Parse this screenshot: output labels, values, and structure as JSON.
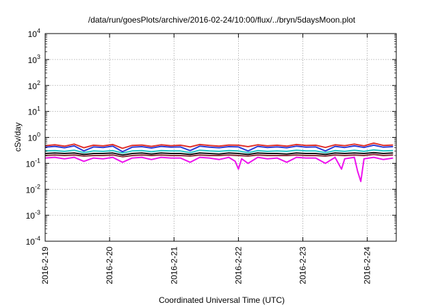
{
  "chart_data": {
    "type": "line",
    "title": "/data/run/goesPlots/archive/2016-02-24/10:00/flux/../bryn/5daysMoon.plot",
    "xlabel": "Coordinated Universal Time (UTC)",
    "ylabel": "cSv/day",
    "yscale": "log",
    "ylim": [
      0.0001,
      10000
    ],
    "xlim": [
      0,
      5.45
    ],
    "x_unit": "days since 2016-2-19 00:00 UTC",
    "grid": true,
    "x_ticks": [
      {
        "value": 0,
        "label": "2016-2-19"
      },
      {
        "value": 1,
        "label": "2016-2-20"
      },
      {
        "value": 2,
        "label": "2016-2-21"
      },
      {
        "value": 3,
        "label": "2016-2-22"
      },
      {
        "value": 4,
        "label": "2016-2-23"
      },
      {
        "value": 5,
        "label": "2016-2-24"
      }
    ],
    "y_ticks": [
      {
        "value": 0.0001,
        "base": "10",
        "exp": "-4"
      },
      {
        "value": 0.001,
        "base": "10",
        "exp": "-3"
      },
      {
        "value": 0.01,
        "base": "10",
        "exp": "-2"
      },
      {
        "value": 0.1,
        "base": "10",
        "exp": "-1"
      },
      {
        "value": 1,
        "base": "10",
        "exp": "0"
      },
      {
        "value": 10,
        "base": "10",
        "exp": "1"
      },
      {
        "value": 100,
        "base": "10",
        "exp": "2"
      },
      {
        "value": 1000,
        "base": "10",
        "exp": "3"
      },
      {
        "value": 10000,
        "base": "10",
        "exp": "4"
      }
    ],
    "series": [
      {
        "color": "#e0302a",
        "x": [
          0,
          0.15,
          0.3,
          0.45,
          0.6,
          0.75,
          0.9,
          1.05,
          1.2,
          1.35,
          1.5,
          1.65,
          1.8,
          1.95,
          2.1,
          2.25,
          2.4,
          2.55,
          2.7,
          2.85,
          3.0,
          3.15,
          3.3,
          3.45,
          3.6,
          3.75,
          3.9,
          4.05,
          4.2,
          4.35,
          4.5,
          4.65,
          4.8,
          4.95,
          5.1,
          5.25,
          5.4
        ],
        "y": [
          0.48,
          0.52,
          0.46,
          0.55,
          0.4,
          0.5,
          0.47,
          0.53,
          0.38,
          0.49,
          0.51,
          0.45,
          0.52,
          0.48,
          0.5,
          0.43,
          0.53,
          0.49,
          0.46,
          0.51,
          0.5,
          0.44,
          0.52,
          0.47,
          0.5,
          0.46,
          0.53,
          0.49,
          0.5,
          0.41,
          0.52,
          0.48,
          0.55,
          0.47,
          0.6,
          0.49,
          0.51
        ]
      },
      {
        "color": "#2a3bd6",
        "x": [
          0,
          0.15,
          0.3,
          0.45,
          0.6,
          0.75,
          0.9,
          1.05,
          1.2,
          1.35,
          1.5,
          1.65,
          1.8,
          1.95,
          2.1,
          2.25,
          2.4,
          2.55,
          2.7,
          2.85,
          3.0,
          3.15,
          3.3,
          3.45,
          3.6,
          3.75,
          3.9,
          4.05,
          4.2,
          4.35,
          4.5,
          4.65,
          4.8,
          4.95,
          5.1,
          5.25,
          5.4
        ],
        "y": [
          0.42,
          0.45,
          0.4,
          0.47,
          0.3,
          0.43,
          0.41,
          0.46,
          0.28,
          0.42,
          0.44,
          0.39,
          0.45,
          0.42,
          0.43,
          0.31,
          0.46,
          0.42,
          0.4,
          0.44,
          0.43,
          0.3,
          0.45,
          0.41,
          0.43,
          0.4,
          0.46,
          0.42,
          0.43,
          0.3,
          0.45,
          0.41,
          0.47,
          0.41,
          0.5,
          0.42,
          0.44
        ]
      },
      {
        "color": "#22c4c4",
        "x": [
          0,
          0.15,
          0.3,
          0.45,
          0.6,
          0.75,
          0.9,
          1.05,
          1.2,
          1.35,
          1.5,
          1.65,
          1.8,
          1.95,
          2.1,
          2.25,
          2.4,
          2.55,
          2.7,
          2.85,
          3.0,
          3.15,
          3.3,
          3.45,
          3.6,
          3.75,
          3.9,
          4.05,
          4.2,
          4.35,
          4.5,
          4.65,
          4.8,
          4.95,
          5.1,
          5.25,
          5.4
        ],
        "y": [
          0.3,
          0.31,
          0.29,
          0.32,
          0.26,
          0.3,
          0.29,
          0.31,
          0.25,
          0.3,
          0.31,
          0.28,
          0.31,
          0.3,
          0.3,
          0.26,
          0.32,
          0.3,
          0.29,
          0.31,
          0.3,
          0.26,
          0.31,
          0.29,
          0.3,
          0.29,
          0.32,
          0.3,
          0.3,
          0.26,
          0.31,
          0.29,
          0.32,
          0.29,
          0.33,
          0.3,
          0.31
        ]
      },
      {
        "color": "#111111",
        "x": [
          0,
          0.15,
          0.3,
          0.45,
          0.6,
          0.75,
          0.9,
          1.05,
          1.2,
          1.35,
          1.5,
          1.65,
          1.8,
          1.95,
          2.1,
          2.25,
          2.4,
          2.55,
          2.7,
          2.85,
          3.0,
          3.15,
          3.3,
          3.45,
          3.6,
          3.75,
          3.9,
          4.05,
          4.2,
          4.35,
          4.5,
          4.65,
          4.8,
          4.95,
          5.1,
          5.25,
          5.4
        ],
        "y": [
          0.24,
          0.25,
          0.24,
          0.25,
          0.22,
          0.24,
          0.24,
          0.25,
          0.21,
          0.24,
          0.25,
          0.23,
          0.25,
          0.24,
          0.24,
          0.22,
          0.25,
          0.24,
          0.23,
          0.25,
          0.24,
          0.22,
          0.25,
          0.24,
          0.24,
          0.23,
          0.25,
          0.24,
          0.24,
          0.22,
          0.25,
          0.24,
          0.25,
          0.24,
          0.26,
          0.24,
          0.25
        ]
      },
      {
        "color": "#8a2a3a",
        "x": [
          0,
          0.15,
          0.3,
          0.45,
          0.6,
          0.75,
          0.9,
          1.05,
          1.2,
          1.35,
          1.5,
          1.65,
          1.8,
          1.95,
          2.1,
          2.25,
          2.4,
          2.55,
          2.7,
          2.85,
          3.0,
          3.15,
          3.3,
          3.45,
          3.6,
          3.75,
          3.9,
          4.05,
          4.2,
          4.35,
          4.5,
          4.65,
          4.8,
          4.95,
          5.1,
          5.25,
          5.4
        ],
        "y": [
          0.2,
          0.21,
          0.2,
          0.21,
          0.19,
          0.2,
          0.2,
          0.21,
          0.18,
          0.2,
          0.21,
          0.2,
          0.21,
          0.2,
          0.2,
          0.19,
          0.21,
          0.2,
          0.2,
          0.21,
          0.2,
          0.19,
          0.21,
          0.2,
          0.2,
          0.2,
          0.21,
          0.2,
          0.2,
          0.19,
          0.21,
          0.2,
          0.21,
          0.2,
          0.22,
          0.2,
          0.21
        ]
      },
      {
        "color": "#ee11ee",
        "x": [
          0,
          0.15,
          0.3,
          0.45,
          0.6,
          0.75,
          0.9,
          1.05,
          1.2,
          1.35,
          1.5,
          1.65,
          1.8,
          1.95,
          2.1,
          2.25,
          2.4,
          2.55,
          2.7,
          2.85,
          2.95,
          3.0,
          3.05,
          3.15,
          3.3,
          3.45,
          3.6,
          3.75,
          3.9,
          4.05,
          4.2,
          4.35,
          4.5,
          4.6,
          4.65,
          4.8,
          4.85,
          4.9,
          4.95,
          5.1,
          5.25,
          5.4
        ],
        "y": [
          0.16,
          0.17,
          0.15,
          0.17,
          0.12,
          0.16,
          0.15,
          0.17,
          0.11,
          0.16,
          0.17,
          0.14,
          0.17,
          0.16,
          0.16,
          0.11,
          0.17,
          0.16,
          0.14,
          0.17,
          0.12,
          0.06,
          0.15,
          0.1,
          0.17,
          0.15,
          0.16,
          0.11,
          0.17,
          0.16,
          0.16,
          0.1,
          0.17,
          0.06,
          0.15,
          0.17,
          0.05,
          0.02,
          0.15,
          0.17,
          0.14,
          0.16
        ]
      }
    ]
  }
}
